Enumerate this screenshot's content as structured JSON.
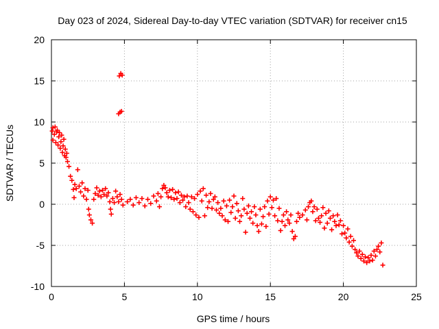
{
  "chart_data": {
    "type": "scatter",
    "title": "Day 023 of 2024, Sidereal Day-to-day VTEC variation (SDTVAR) for receiver cn15",
    "xlabel": "GPS time / hours",
    "ylabel": "SDTVAR / TECUs",
    "xlim": [
      0,
      25
    ],
    "ylim": [
      -10,
      20
    ],
    "xticks": [
      0,
      5,
      10,
      15,
      20,
      25
    ],
    "yticks": [
      -10,
      -5,
      0,
      5,
      10,
      15,
      20
    ],
    "xtick_labels": [
      "0",
      "5",
      "10",
      "15",
      "20",
      "25"
    ],
    "ytick_labels": [
      "-10",
      "-5",
      "0",
      "5",
      "10",
      "15",
      "20"
    ],
    "grid": true,
    "marker": "+",
    "series": [
      {
        "name": "SDTVAR",
        "color": "#ff0000",
        "points": [
          [
            0.05,
            8.9
          ],
          [
            0.1,
            9.3
          ],
          [
            0.1,
            7.8
          ],
          [
            0.2,
            8.5
          ],
          [
            0.25,
            9.4
          ],
          [
            0.3,
            7.5
          ],
          [
            0.35,
            8.8
          ],
          [
            0.4,
            9.0
          ],
          [
            0.45,
            7.2
          ],
          [
            0.5,
            8.2
          ],
          [
            0.55,
            8.7
          ],
          [
            0.6,
            6.8
          ],
          [
            0.65,
            7.6
          ],
          [
            0.7,
            8.4
          ],
          [
            0.75,
            6.3
          ],
          [
            0.8,
            7.1
          ],
          [
            0.85,
            7.9
          ],
          [
            0.9,
            5.9
          ],
          [
            0.95,
            6.7
          ],
          [
            1.0,
            5.7
          ],
          [
            1.05,
            6.2
          ],
          [
            1.1,
            5.2
          ],
          [
            1.2,
            4.6
          ],
          [
            1.3,
            3.4
          ],
          [
            1.4,
            2.9
          ],
          [
            1.5,
            1.8
          ],
          [
            1.55,
            0.8
          ],
          [
            1.6,
            2.4
          ],
          [
            1.7,
            1.9
          ],
          [
            1.8,
            4.2
          ],
          [
            1.9,
            2.2
          ],
          [
            2.0,
            1.5
          ],
          [
            2.1,
            2.6
          ],
          [
            2.2,
            1.0
          ],
          [
            2.3,
            1.9
          ],
          [
            2.4,
            0.6
          ],
          [
            2.5,
            1.7
          ],
          [
            2.55,
            -0.6
          ],
          [
            2.6,
            -1.3
          ],
          [
            2.7,
            -1.9
          ],
          [
            2.8,
            -2.3
          ],
          [
            2.9,
            0.6
          ],
          [
            3.0,
            1.3
          ],
          [
            3.1,
            2.0
          ],
          [
            3.2,
            1.1
          ],
          [
            3.3,
            1.6
          ],
          [
            3.4,
            0.9
          ],
          [
            3.5,
            1.7
          ],
          [
            3.6,
            1.2
          ],
          [
            3.7,
            1.9
          ],
          [
            3.8,
            1.0
          ],
          [
            3.9,
            1.4
          ],
          [
            4.0,
            0.3
          ],
          [
            4.05,
            -0.6
          ],
          [
            4.1,
            -1.2
          ],
          [
            4.2,
            0.7
          ],
          [
            4.3,
            0.2
          ],
          [
            4.4,
            1.6
          ],
          [
            4.5,
            0.9
          ],
          [
            4.6,
            0.3
          ],
          [
            4.7,
            1.2
          ],
          [
            4.8,
            0.6
          ],
          [
            4.9,
            -0.1
          ],
          [
            4.65,
            15.6
          ],
          [
            4.75,
            15.9
          ],
          [
            4.85,
            15.7
          ],
          [
            4.6,
            11.0
          ],
          [
            4.7,
            11.2
          ],
          [
            4.8,
            11.3
          ],
          [
            5.2,
            0.3
          ],
          [
            5.4,
            0.6
          ],
          [
            5.6,
            -0.1
          ],
          [
            5.8,
            0.8
          ],
          [
            6.0,
            0.2
          ],
          [
            6.2,
            0.7
          ],
          [
            6.4,
            -0.2
          ],
          [
            6.6,
            0.6
          ],
          [
            6.8,
            0.1
          ],
          [
            7.0,
            1.0
          ],
          [
            7.2,
            0.4
          ],
          [
            7.3,
            1.3
          ],
          [
            7.4,
            -0.3
          ],
          [
            7.5,
            0.9
          ],
          [
            7.6,
            1.9
          ],
          [
            7.7,
            2.3
          ],
          [
            7.8,
            2.0
          ],
          [
            7.9,
            1.4
          ],
          [
            8.0,
            0.9
          ],
          [
            8.1,
            1.7
          ],
          [
            8.2,
            0.8
          ],
          [
            8.3,
            1.8
          ],
          [
            8.4,
            0.6
          ],
          [
            8.5,
            1.4
          ],
          [
            8.6,
            0.7
          ],
          [
            8.7,
            1.5
          ],
          [
            8.8,
            0.2
          ],
          [
            8.9,
            1.1
          ],
          [
            9.0,
            0.5
          ],
          [
            9.1,
            0.9
          ],
          [
            9.2,
            -0.3
          ],
          [
            9.3,
            1.0
          ],
          [
            9.4,
            0.2
          ],
          [
            9.5,
            -0.6
          ],
          [
            9.6,
            0.9
          ],
          [
            9.7,
            -0.9
          ],
          [
            9.8,
            0.7
          ],
          [
            9.9,
            -1.3
          ],
          [
            10.0,
            1.2
          ],
          [
            10.1,
            -1.6
          ],
          [
            10.2,
            1.6
          ],
          [
            10.3,
            0.4
          ],
          [
            10.4,
            1.9
          ],
          [
            10.5,
            -1.4
          ],
          [
            10.6,
            1.1
          ],
          [
            10.7,
            -0.4
          ],
          [
            10.8,
            0.3
          ],
          [
            10.9,
            1.3
          ],
          [
            11.0,
            -0.5
          ],
          [
            11.1,
            0.6
          ],
          [
            11.2,
            0.9
          ],
          [
            11.3,
            -0.7
          ],
          [
            11.4,
            0.2
          ],
          [
            11.5,
            -1.1
          ],
          [
            11.6,
            -0.5
          ],
          [
            11.7,
            -1.4
          ],
          [
            11.8,
            0.4
          ],
          [
            11.9,
            -1.9
          ],
          [
            12.0,
            -0.2
          ],
          [
            12.1,
            -2.1
          ],
          [
            12.2,
            0.5
          ],
          [
            12.3,
            -1.0
          ],
          [
            12.4,
            -0.3
          ],
          [
            12.5,
            1.0
          ],
          [
            12.6,
            -1.7
          ],
          [
            12.7,
            0.1
          ],
          [
            12.8,
            -0.8
          ],
          [
            12.9,
            -2.1
          ],
          [
            13.0,
            -1.4
          ],
          [
            13.1,
            0.7
          ],
          [
            13.2,
            -0.6
          ],
          [
            13.3,
            -3.4
          ],
          [
            13.4,
            -1.1
          ],
          [
            13.5,
            -0.2
          ],
          [
            13.6,
            -1.7
          ],
          [
            13.7,
            -0.9
          ],
          [
            13.8,
            -2.3
          ],
          [
            13.9,
            -0.3
          ],
          [
            14.0,
            -1.3
          ],
          [
            14.1,
            -2.6
          ],
          [
            14.2,
            -3.3
          ],
          [
            14.3,
            -0.6
          ],
          [
            14.4,
            -2.4
          ],
          [
            14.5,
            -1.5
          ],
          [
            14.6,
            -0.3
          ],
          [
            14.7,
            -2.7
          ],
          [
            14.8,
            0.4
          ],
          [
            14.9,
            -1.2
          ],
          [
            15.0,
            0.9
          ],
          [
            15.1,
            -0.4
          ],
          [
            15.2,
            0.5
          ],
          [
            15.3,
            -1.4
          ],
          [
            15.4,
            0.7
          ],
          [
            15.5,
            -2.0
          ],
          [
            15.6,
            -0.5
          ],
          [
            15.7,
            -3.2
          ],
          [
            15.8,
            -2.1
          ],
          [
            15.9,
            -1.3
          ],
          [
            16.0,
            -2.6
          ],
          [
            16.1,
            -0.9
          ],
          [
            16.2,
            -1.9
          ],
          [
            16.3,
            -2.3
          ],
          [
            16.4,
            -1.3
          ],
          [
            16.5,
            -3.3
          ],
          [
            16.6,
            -4.2
          ],
          [
            16.7,
            -3.9
          ],
          [
            16.8,
            -2.1
          ],
          [
            16.9,
            -1.1
          ],
          [
            17.0,
            -1.6
          ],
          [
            17.2,
            -1.3
          ],
          [
            17.4,
            -0.7
          ],
          [
            17.5,
            -1.9
          ],
          [
            17.6,
            -0.3
          ],
          [
            17.7,
            0.2
          ],
          [
            17.8,
            0.4
          ],
          [
            17.9,
            -0.9
          ],
          [
            18.0,
            -0.3
          ],
          [
            18.1,
            -2.0
          ],
          [
            18.2,
            -0.6
          ],
          [
            18.3,
            -1.7
          ],
          [
            18.4,
            -2.2
          ],
          [
            18.5,
            -1.4
          ],
          [
            18.6,
            -0.4
          ],
          [
            18.7,
            -2.9
          ],
          [
            18.8,
            -1.1
          ],
          [
            18.9,
            -2.3
          ],
          [
            19.0,
            -0.8
          ],
          [
            19.1,
            -1.7
          ],
          [
            19.2,
            -3.1
          ],
          [
            19.3,
            -1.4
          ],
          [
            19.4,
            -2.1
          ],
          [
            19.5,
            -2.6
          ],
          [
            19.6,
            -1.3
          ],
          [
            19.7,
            -2.5
          ],
          [
            19.8,
            -2.0
          ],
          [
            19.9,
            -3.6
          ],
          [
            20.0,
            -2.6
          ],
          [
            20.1,
            -3.5
          ],
          [
            20.2,
            -4.1
          ],
          [
            20.3,
            -3.0
          ],
          [
            20.4,
            -4.6
          ],
          [
            20.5,
            -3.9
          ],
          [
            20.6,
            -5.1
          ],
          [
            20.7,
            -4.4
          ],
          [
            20.8,
            -5.5
          ],
          [
            20.9,
            -5.9
          ],
          [
            21.0,
            -6.3
          ],
          [
            21.1,
            -5.7
          ],
          [
            21.2,
            -6.6
          ],
          [
            21.3,
            -6.1
          ],
          [
            21.4,
            -6.9
          ],
          [
            21.5,
            -6.4
          ],
          [
            21.6,
            -7.1
          ],
          [
            21.7,
            -6.5
          ],
          [
            21.8,
            -6.9
          ],
          [
            21.9,
            -6.2
          ],
          [
            22.0,
            -6.8
          ],
          [
            22.1,
            -5.7
          ],
          [
            22.2,
            -6.3
          ],
          [
            22.3,
            -5.5
          ],
          [
            22.4,
            -5.1
          ],
          [
            22.5,
            -5.8
          ],
          [
            22.6,
            -4.7
          ],
          [
            22.7,
            -7.4
          ]
        ]
      }
    ]
  }
}
